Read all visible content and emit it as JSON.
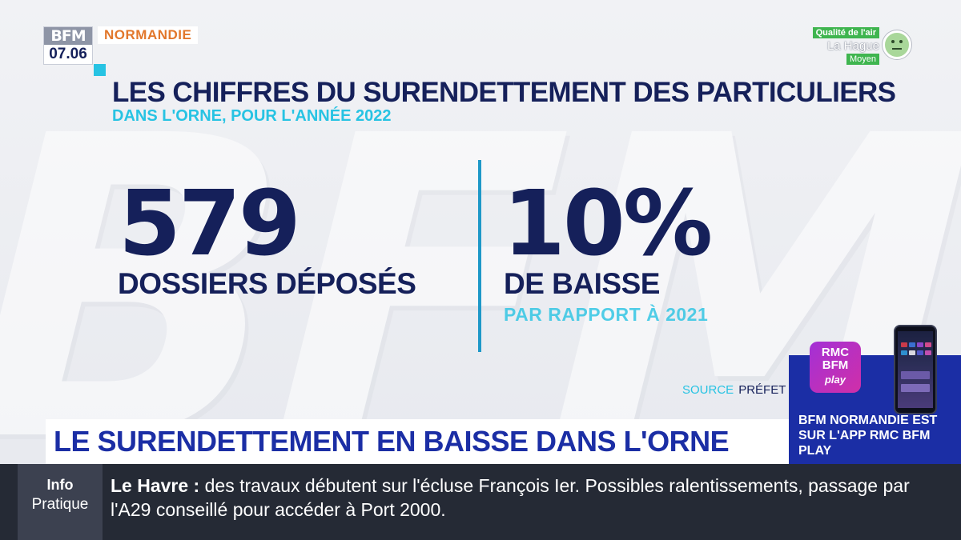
{
  "channel": {
    "logo_text": "BFM",
    "time": "07.06",
    "region": "NORMANDIE"
  },
  "air_quality": {
    "title": "Qualité de l'air",
    "city": "La Hague",
    "level": "Moyen",
    "icon": "neutral-face-icon",
    "color": "#3fb54f"
  },
  "background_watermark": "BFM",
  "infographic": {
    "title": "LES CHIFFRES DU SURENDETTEMENT DES PARTICULIERS",
    "subtitle": "DANS L'ORNE, POUR L'ANNÉE 2022",
    "stats": [
      {
        "value": "579",
        "label": "DOSSIERS DÉPOSÉS",
        "note": ""
      },
      {
        "value": "10%",
        "label": "DE BAISSE",
        "note": "PAR RAPPORT À 2021"
      }
    ],
    "source_label": "SOURCE",
    "source_value": "PRÉFET"
  },
  "promo": {
    "logo_lines": [
      "RMC",
      "BFM",
      "play"
    ],
    "text": "BFM NORMANDIE EST SUR L'APP RMC BFM PLAY"
  },
  "headline": "LE SURENDETTEMENT EN BAISSE DANS L'ORNE",
  "ticker": {
    "badge_line1": "Info",
    "badge_line2": "Pratique",
    "place": "Le Havre :",
    "message": "des travaux débutent sur l'écluse François Ier. Possibles ralentissements, passage par l'A29 conseillé pour accéder à Port 2000."
  },
  "colors": {
    "navy": "#15205a",
    "cyan": "#27c3e3",
    "orange": "#e2772b",
    "royal_blue": "#1b2ea5",
    "ticker_bg": "#252a35"
  }
}
